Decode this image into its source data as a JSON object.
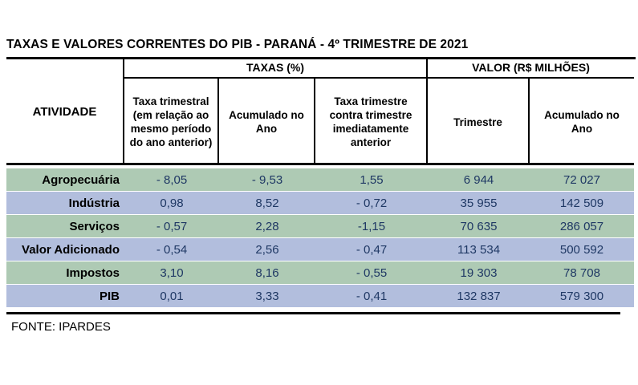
{
  "title": "TAXAS E VALORES CORRENTES DO PIB - PARANÁ - 4º TRIMESTRE DE 2021",
  "footer": "FONTE: IPARDES",
  "colors": {
    "row_green": "#aecab4",
    "row_blue": "#b2bedd",
    "value_text": "#1f3864"
  },
  "table": {
    "activity_header": "ATIVIDADE",
    "group_headers": [
      {
        "label": "TAXAS (%)",
        "colspan": 3
      },
      {
        "label": "VALOR (R$ MILHÕES)",
        "colspan": 2
      }
    ],
    "sub_headers": [
      "Taxa trimestral (em relação ao mesmo período do ano anterior)",
      "Acumulado no Ano",
      "Taxa trimestre contra trimestre imediatamente anterior",
      "Trimestre",
      "Acumulado no Ano"
    ],
    "rows": [
      {
        "activity": "Agropecuária",
        "values": [
          "- 8,05",
          "- 9,53",
          "1,55",
          "6 944",
          "72 027"
        ]
      },
      {
        "activity": "Indústria",
        "values": [
          "0,98",
          "8,52",
          "- 0,72",
          "35 955",
          "142 509"
        ]
      },
      {
        "activity": "Serviços",
        "values": [
          "- 0,57",
          "2,28",
          "-1,15",
          "70 635",
          "286 057"
        ]
      },
      {
        "activity": "Valor Adicionado",
        "values": [
          "- 0,54",
          "2,56",
          "- 0,47",
          "113 534",
          "500 592"
        ]
      },
      {
        "activity": "Impostos",
        "values": [
          "3,10",
          "8,16",
          "- 0,55",
          "19 303",
          "78 708"
        ]
      },
      {
        "activity": "PIB",
        "values": [
          "0,01",
          "3,33",
          "- 0,41",
          "132 837",
          "579 300"
        ]
      }
    ]
  },
  "chart_data": {
    "type": "table",
    "title": "TAXAS E VALORES CORRENTES DO PIB - PARANÁ - 4º TRIMESTRE DE 2021",
    "column_groups": [
      "TAXAS (%)",
      "VALOR (R$ MILHÕES)"
    ],
    "columns": [
      "ATIVIDADE",
      "Taxa trimestral (em relação ao mesmo período do ano anterior)",
      "Acumulado no Ano",
      "Taxa trimestre contra trimestre imediatamente anterior",
      "Trimestre",
      "Acumulado no Ano"
    ],
    "rows": [
      [
        "Agropecuária",
        -8.05,
        -9.53,
        1.55,
        6944,
        72027
      ],
      [
        "Indústria",
        0.98,
        8.52,
        -0.72,
        35955,
        142509
      ],
      [
        "Serviços",
        -0.57,
        2.28,
        -1.15,
        70635,
        286057
      ],
      [
        "Valor Adicionado",
        -0.54,
        2.56,
        -0.47,
        113534,
        500592
      ],
      [
        "Impostos",
        3.1,
        8.16,
        -0.55,
        19303,
        78708
      ],
      [
        "PIB",
        0.01,
        3.33,
        -0.41,
        132837,
        579300
      ]
    ],
    "source": "FONTE: IPARDES"
  }
}
